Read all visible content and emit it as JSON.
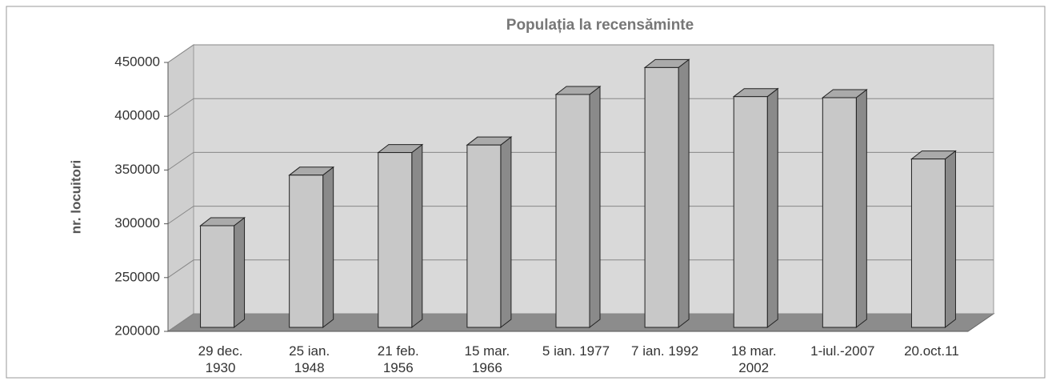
{
  "chart_data": {
    "type": "bar3d",
    "title": "Populația la recensăminte",
    "y_label": "nr. locuitori",
    "categories": [
      "29 dec.\n1930",
      "25 ian.\n1948",
      "21 feb.\n1956",
      "15 mar.\n1966",
      "5 ian. 1977",
      "7 ian. 1992",
      "18 mar.\n2002",
      "1-iul.-2007",
      "20.oct.11"
    ],
    "values": [
      296000,
      343000,
      364000,
      371000,
      418000,
      443000,
      416000,
      415000,
      358000
    ],
    "color": "#c8c8c8",
    "ylim": [
      200000,
      450000
    ],
    "yticks": [
      200000,
      250000,
      300000,
      350000,
      400000,
      450000
    ],
    "grid": true
  }
}
